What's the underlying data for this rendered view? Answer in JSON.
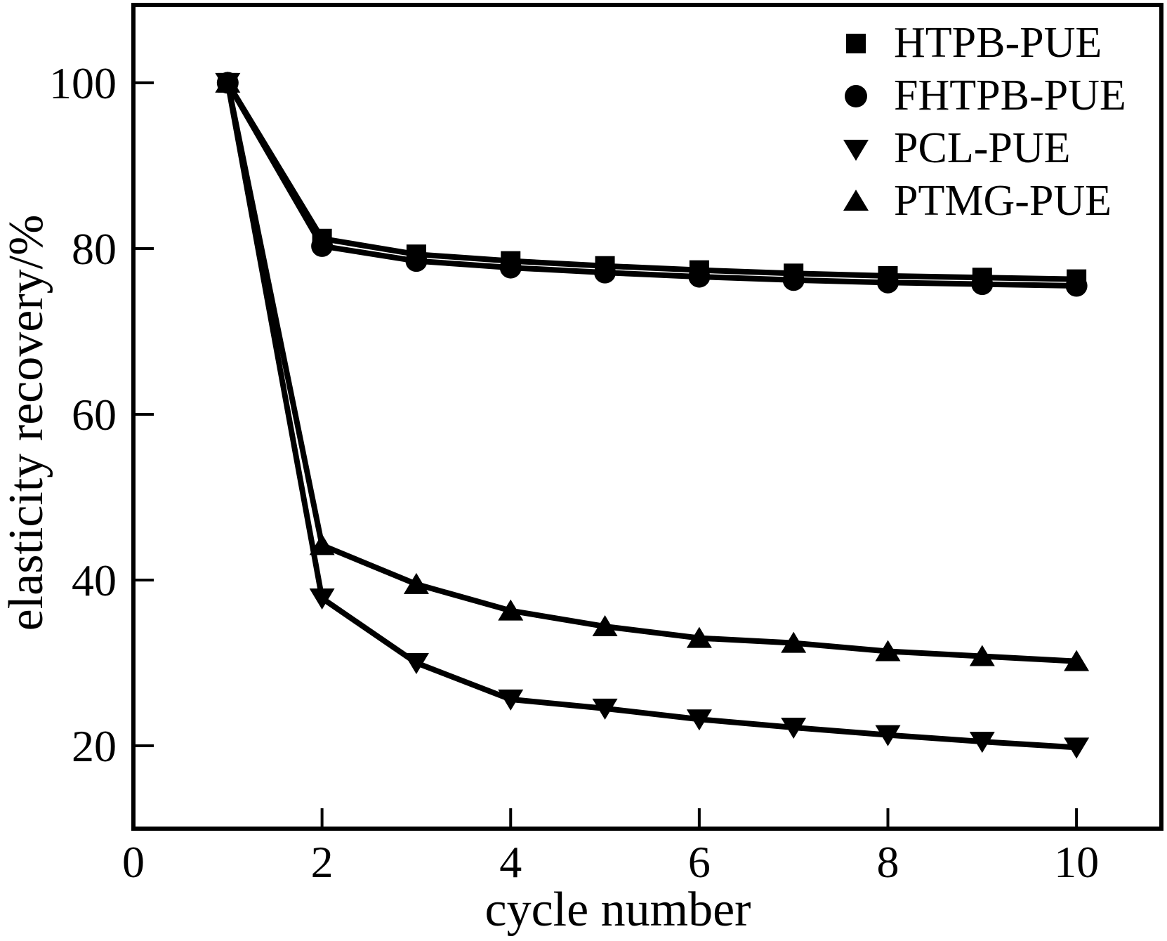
{
  "figure": {
    "background": "#ffffff",
    "ink": "#000000"
  },
  "chart_data": {
    "type": "line",
    "title": "",
    "xlabel": "cycle number",
    "ylabel": "elasticity recovery/%",
    "xlim": [
      0,
      10.9
    ],
    "ylim": [
      10,
      109.4
    ],
    "xticks": [
      0,
      2,
      4,
      6,
      8,
      10
    ],
    "yticks": [
      20,
      40,
      60,
      80,
      100
    ],
    "grid": false,
    "legend_position": "top-right",
    "x": [
      1,
      2,
      3,
      4,
      5,
      6,
      7,
      8,
      9,
      10
    ],
    "series": [
      {
        "name": "HTPB-PUE",
        "marker": "square",
        "color": "#000000",
        "values": [
          100,
          81.2,
          79.3,
          78.5,
          77.9,
          77.4,
          77.0,
          76.7,
          76.5,
          76.3
        ]
      },
      {
        "name": "FHTPB-PUE",
        "marker": "circle",
        "color": "#000000",
        "values": [
          100,
          80.3,
          78.5,
          77.7,
          77.1,
          76.6,
          76.2,
          75.9,
          75.7,
          75.5
        ]
      },
      {
        "name": "PCL-PUE",
        "marker": "triangle-down",
        "color": "#000000",
        "values": [
          100,
          37.8,
          30.0,
          25.6,
          24.5,
          23.2,
          22.2,
          21.3,
          20.5,
          19.8
        ]
      },
      {
        "name": "PTMG-PUE",
        "marker": "triangle-up",
        "color": "#000000",
        "values": [
          100,
          44.2,
          39.5,
          36.3,
          34.4,
          33.0,
          32.4,
          31.4,
          30.8,
          30.2
        ]
      }
    ]
  }
}
